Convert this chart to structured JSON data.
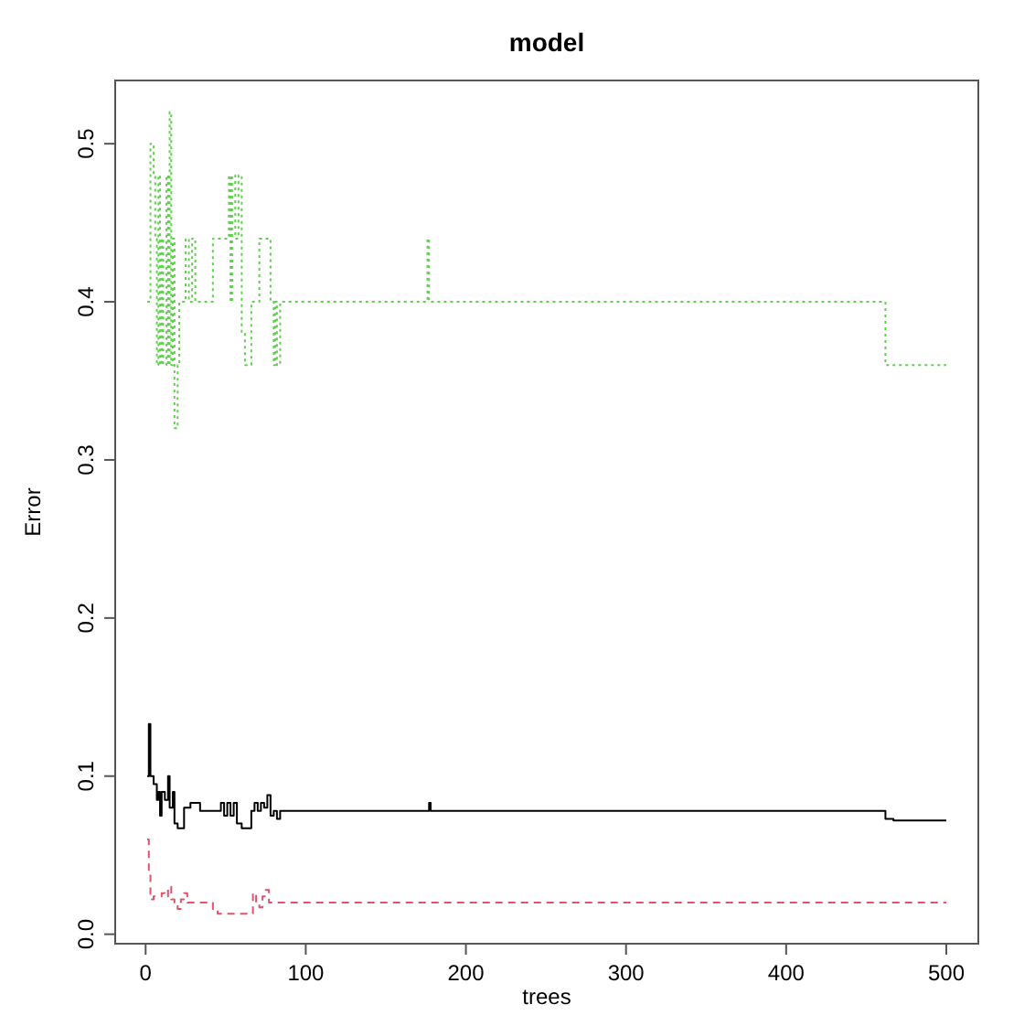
{
  "chart_data": {
    "type": "step",
    "title": "model",
    "xlabel": "trees",
    "ylabel": "Error",
    "xlim": [
      -19,
      520
    ],
    "ylim": [
      -0.006,
      0.54
    ],
    "xticks": [
      0,
      100,
      200,
      300,
      400,
      500
    ],
    "yticks": [
      {
        "value": 0,
        "label": "0.0"
      },
      0.1,
      0.2,
      0.3,
      0.4,
      0.5
    ],
    "grid": false,
    "marker": "none",
    "series": [
      {
        "color": "#000000",
        "line_style": "solid",
        "x": [
          1,
          2,
          3,
          5,
          7,
          8,
          9,
          10,
          12,
          14,
          15,
          17,
          18,
          20,
          22,
          24,
          26,
          28,
          32,
          34,
          45,
          47,
          49,
          51,
          53,
          55,
          57,
          60,
          64,
          66,
          68,
          70,
          72,
          74,
          76,
          78,
          80,
          82,
          84,
          176,
          177,
          178,
          460,
          462,
          465,
          467,
          500
        ],
        "values": [
          0.1,
          0.133,
          0.1,
          0.095,
          0.085,
          0.09,
          0.075,
          0.09,
          0.085,
          0.1,
          0.08,
          0.09,
          0.07,
          0.067,
          0.067,
          0.08,
          0.08,
          0.083,
          0.083,
          0.078,
          0.078,
          0.083,
          0.075,
          0.083,
          0.075,
          0.083,
          0.07,
          0.067,
          0.067,
          0.078,
          0.083,
          0.078,
          0.083,
          0.08,
          0.088,
          0.075,
          0.078,
          0.073,
          0.078,
          0.078,
          0.083,
          0.078,
          0.078,
          0.073,
          0.073,
          0.072,
          0.072
        ]
      },
      {
        "color": "#df536b",
        "line_style": "dashed",
        "x": [
          1,
          2,
          3,
          5,
          8,
          10,
          12,
          14,
          16,
          18,
          20,
          22,
          24,
          26,
          30,
          40,
          42,
          45,
          65,
          67,
          69,
          71,
          73,
          75,
          77,
          80,
          500
        ],
        "values": [
          0.06,
          0.04,
          0.022,
          0.024,
          0.024,
          0.026,
          0.024,
          0.03,
          0.022,
          0.02,
          0.016,
          0.022,
          0.026,
          0.02,
          0.02,
          0.02,
          0.016,
          0.013,
          0.013,
          0.026,
          0.02,
          0.017,
          0.024,
          0.028,
          0.02,
          0.02,
          0.02
        ]
      },
      {
        "color": "#61d04f",
        "line_style": "dotted",
        "x": [
          1,
          3,
          5,
          6,
          7,
          8,
          9,
          10,
          11,
          13,
          14,
          15,
          16,
          17,
          18,
          20,
          21,
          24,
          25,
          27,
          29,
          31,
          40,
          42,
          50,
          52,
          53,
          54,
          56,
          58,
          60,
          62,
          64,
          66,
          70,
          71,
          76,
          78,
          80,
          81,
          82,
          84,
          175,
          176,
          177,
          460,
          462,
          500
        ],
        "values": [
          0.4,
          0.5,
          0.48,
          0.44,
          0.36,
          0.48,
          0.36,
          0.44,
          0.36,
          0.48,
          0.36,
          0.52,
          0.36,
          0.44,
          0.32,
          0.36,
          0.4,
          0.4,
          0.44,
          0.4,
          0.44,
          0.4,
          0.4,
          0.44,
          0.44,
          0.48,
          0.4,
          0.48,
          0.44,
          0.48,
          0.38,
          0.36,
          0.36,
          0.4,
          0.4,
          0.44,
          0.44,
          0.4,
          0.36,
          0.4,
          0.36,
          0.4,
          0.4,
          0.44,
          0.4,
          0.4,
          0.36,
          0.36
        ]
      }
    ]
  }
}
